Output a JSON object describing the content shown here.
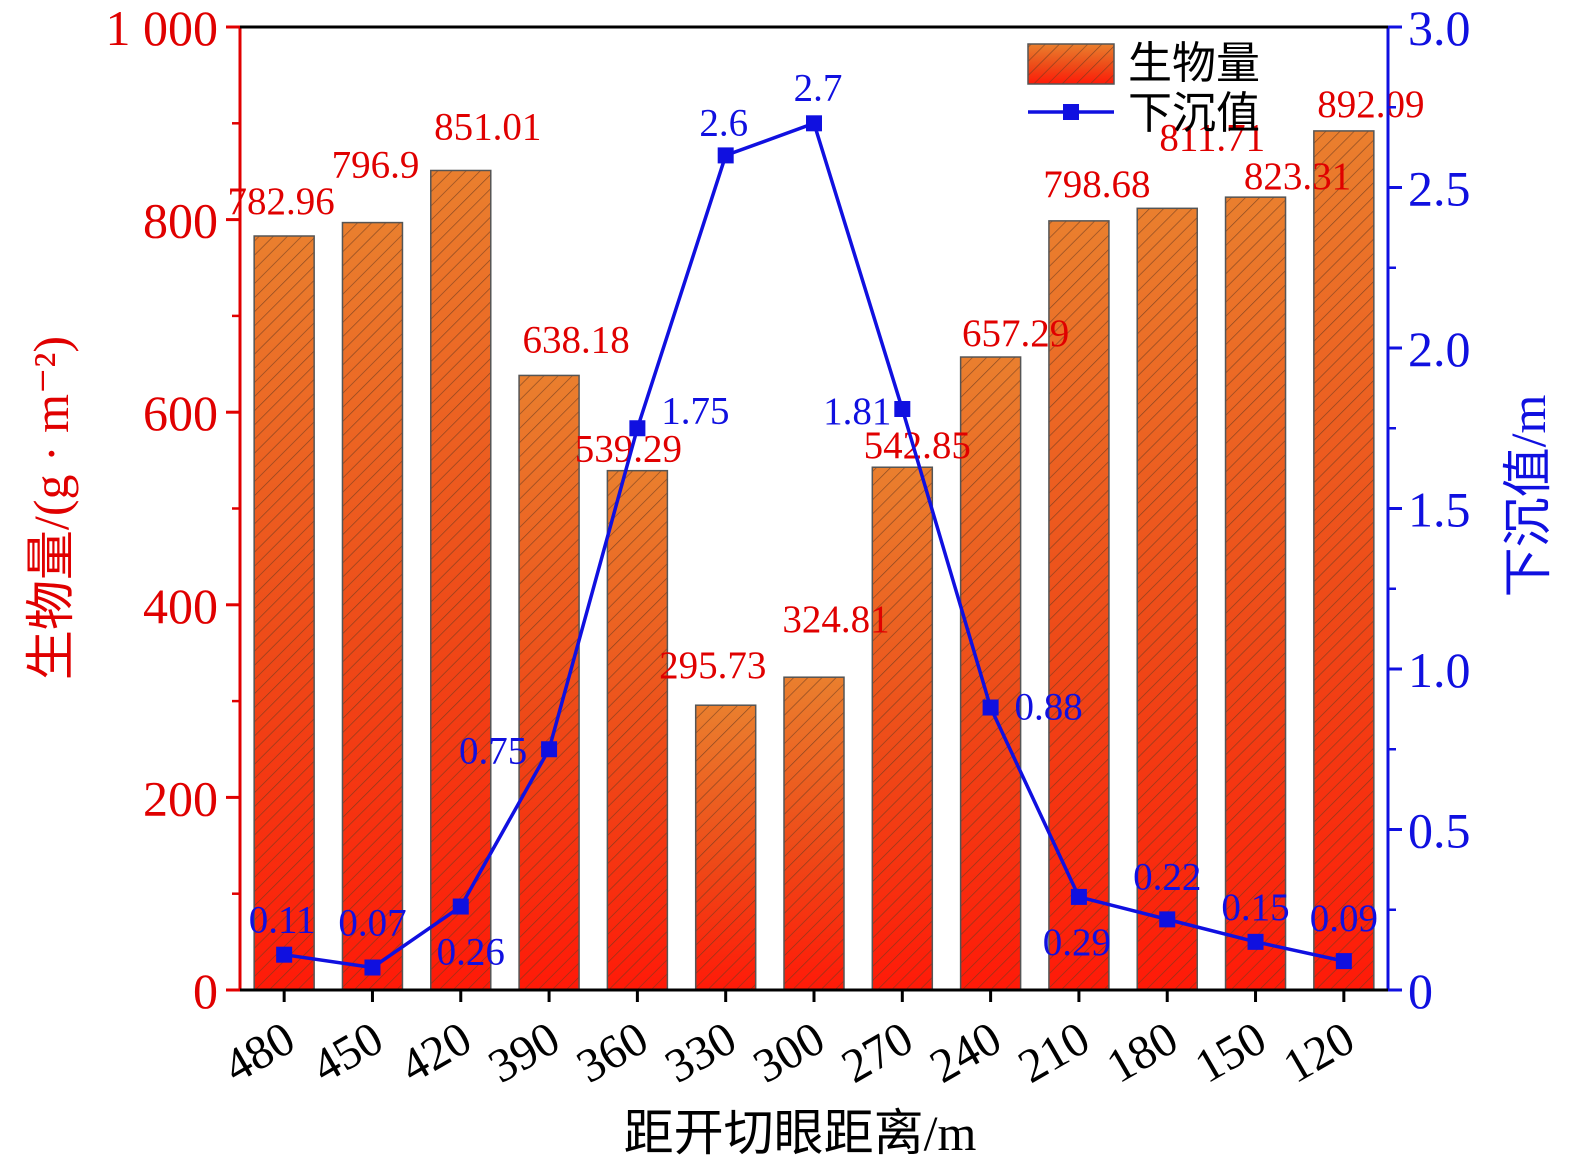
{
  "chart_data": {
    "type": "bar",
    "categories": [
      "480",
      "450",
      "420",
      "390",
      "360",
      "330",
      "300",
      "270",
      "240",
      "210",
      "180",
      "150",
      "120"
    ],
    "xlabel": "距开切眼距离/m",
    "ylabel_left": "生物量/(g · m⁻²)",
    "ylabel_right": "下沉值/m",
    "left_axis": {
      "ylim": [
        0,
        1000
      ],
      "ticks": [
        0,
        200,
        400,
        600,
        800,
        1000
      ],
      "tick_labels": [
        "0",
        "200",
        "400",
        "600",
        "800",
        "1 000"
      ],
      "color": "#e00000"
    },
    "right_axis": {
      "ylim": [
        0,
        3.0
      ],
      "ticks": [
        0,
        0.5,
        1.0,
        1.5,
        2.0,
        2.5,
        3.0
      ],
      "tick_labels": [
        "0",
        "0.5",
        "1.0",
        "1.5",
        "2.0",
        "2.5",
        "3.0"
      ],
      "color": "#1010e0"
    },
    "legend_position": "top-right",
    "grid": false,
    "series": [
      {
        "name": "生物量",
        "type": "bar",
        "axis": "left",
        "values": [
          782.96,
          796.9,
          851.01,
          638.18,
          539.29,
          295.73,
          324.81,
          542.85,
          657.29,
          798.68,
          811.71,
          823.31,
          892.09
        ],
        "data_labels": [
          "782.96",
          "796.9",
          "851.01",
          "638.18",
          "539.29",
          "295.73",
          "324.81",
          "542.85",
          "657.29",
          "798.68",
          "811.71",
          "823.31",
          "892.09"
        ],
        "color": "#e00000"
      },
      {
        "name": "下沉值",
        "type": "line",
        "axis": "right",
        "values": [
          0.11,
          0.07,
          0.26,
          0.75,
          1.75,
          2.6,
          2.7,
          1.81,
          0.88,
          0.29,
          0.22,
          0.15,
          0.09
        ],
        "data_labels": [
          "0.11",
          "0.07",
          "0.26",
          "0.75",
          "1.75",
          "2.6",
          "2.7",
          "1.81",
          "0.88",
          "0.29",
          "0.22",
          "0.15",
          "0.09"
        ],
        "color": "#1010e0"
      }
    ]
  }
}
